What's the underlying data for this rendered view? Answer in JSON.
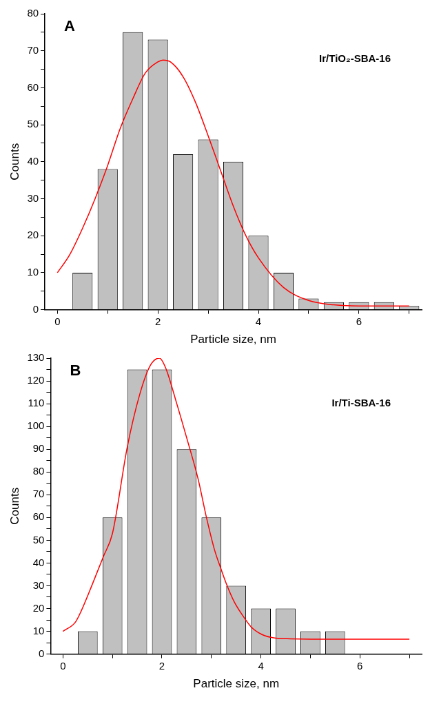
{
  "chart_data": [
    {
      "type": "histogram",
      "xlabel": "Particle size, nm",
      "ylabel": "Counts",
      "color": "#c0c0c0",
      "marker": "none",
      "grid": false,
      "legend": false,
      "bins": [
        0.25,
        0.75,
        1.25,
        1.75,
        2.25,
        2.75,
        3.25,
        3.75,
        4.25,
        4.75,
        5.25,
        5.75,
        6.25,
        6.75,
        7.25
      ],
      "values": [
        10,
        38,
        75,
        73,
        42,
        46,
        40,
        20,
        10,
        3,
        2,
        2,
        2,
        1
      ],
      "series": [
        {
          "type": "line",
          "color": "#ff0000",
          "x": [
            0,
            0.25,
            0.5,
            0.75,
            1,
            1.25,
            1.5,
            1.75,
            2,
            2.1,
            2.25,
            2.5,
            2.75,
            3,
            3.25,
            3.5,
            3.75,
            4,
            4.5,
            5,
            5.5,
            6,
            7
          ],
          "values": [
            10,
            15,
            22,
            30,
            39,
            49,
            57,
            64,
            67,
            67.5,
            67,
            63,
            56,
            47,
            37.5,
            28,
            20,
            14,
            6,
            2.5,
            1.3,
            1,
            1
          ]
        }
      ],
      "xlim": [
        -0.25,
        7.25
      ],
      "xticks": [
        0,
        {
          "value": 1,
          "label": null
        },
        2,
        {
          "value": 3,
          "label": null
        },
        4,
        {
          "value": 5,
          "label": null
        },
        6,
        {
          "value": 7,
          "label": null
        }
      ],
      "ylim": [
        0,
        80
      ],
      "yticks": [
        0,
        {
          "value": 5,
          "label": null
        },
        10,
        {
          "value": 15,
          "label": null
        },
        20,
        {
          "value": 25,
          "label": null
        },
        30,
        {
          "value": 35,
          "label": null
        },
        40,
        {
          "value": 45,
          "label": null
        },
        50,
        {
          "value": 55,
          "label": null
        },
        60,
        {
          "value": 65,
          "label": null
        },
        70,
        {
          "value": 75,
          "label": null
        },
        80
      ],
      "annotations": [
        "A",
        "Ir/TiO₂-SBA-16"
      ]
    },
    {
      "type": "histogram",
      "xlabel": "Particle size, nm",
      "ylabel": "Counts",
      "color": "#c0c0c0",
      "marker": "none",
      "grid": false,
      "legend": false,
      "bins": [
        0.25,
        0.75,
        1.25,
        1.75,
        2.25,
        2.75,
        3.25,
        3.75,
        4.25,
        4.75,
        5.25,
        5.75
      ],
      "values": [
        10,
        60,
        125,
        125,
        90,
        60,
        30,
        20,
        20,
        10,
        10
      ],
      "series": [
        {
          "type": "line",
          "color": "#ff0000",
          "x": [
            0,
            0.25,
            0.37,
            0.6,
            0.82,
            1,
            1.3,
            1.55,
            1.77,
            1.95,
            2.07,
            2.3,
            2.5,
            2.73,
            2.9,
            3.06,
            3.2,
            3.3,
            3.46,
            3.63,
            3.8,
            4.03,
            4.3,
            4.6,
            5.5,
            7
          ],
          "values": [
            10,
            14,
            19,
            31,
            43,
            53,
            91,
            114,
            127,
            130,
            126,
            110,
            95,
            77,
            60,
            46,
            37,
            31,
            23,
            17,
            12,
            8.5,
            7,
            6.7,
            6.5,
            6.5
          ]
        }
      ],
      "xlim": [
        -0.25,
        7.25
      ],
      "xticks": [
        0,
        {
          "value": 1,
          "label": null
        },
        2,
        {
          "value": 3,
          "label": null
        },
        4,
        {
          "value": 5,
          "label": null
        },
        6,
        {
          "value": 7,
          "label": null
        }
      ],
      "ylim": [
        0,
        130
      ],
      "yticks": [
        0,
        {
          "value": 5,
          "label": null
        },
        10,
        {
          "value": 15,
          "label": null
        },
        20,
        {
          "value": 25,
          "label": null
        },
        30,
        {
          "value": 35,
          "label": null
        },
        40,
        {
          "value": 45,
          "label": null
        },
        50,
        {
          "value": 55,
          "label": null
        },
        60,
        {
          "value": 65,
          "label": null
        },
        70,
        {
          "value": 75,
          "label": null
        },
        80,
        {
          "value": 85,
          "label": null
        },
        90,
        {
          "value": 95,
          "label": null
        },
        100,
        {
          "value": 105,
          "label": null
        },
        110,
        {
          "value": 115,
          "label": null
        },
        120,
        {
          "value": 125,
          "label": null
        },
        130
      ],
      "annotations": [
        "B",
        "Ir/Ti-SBA-16"
      ]
    }
  ]
}
